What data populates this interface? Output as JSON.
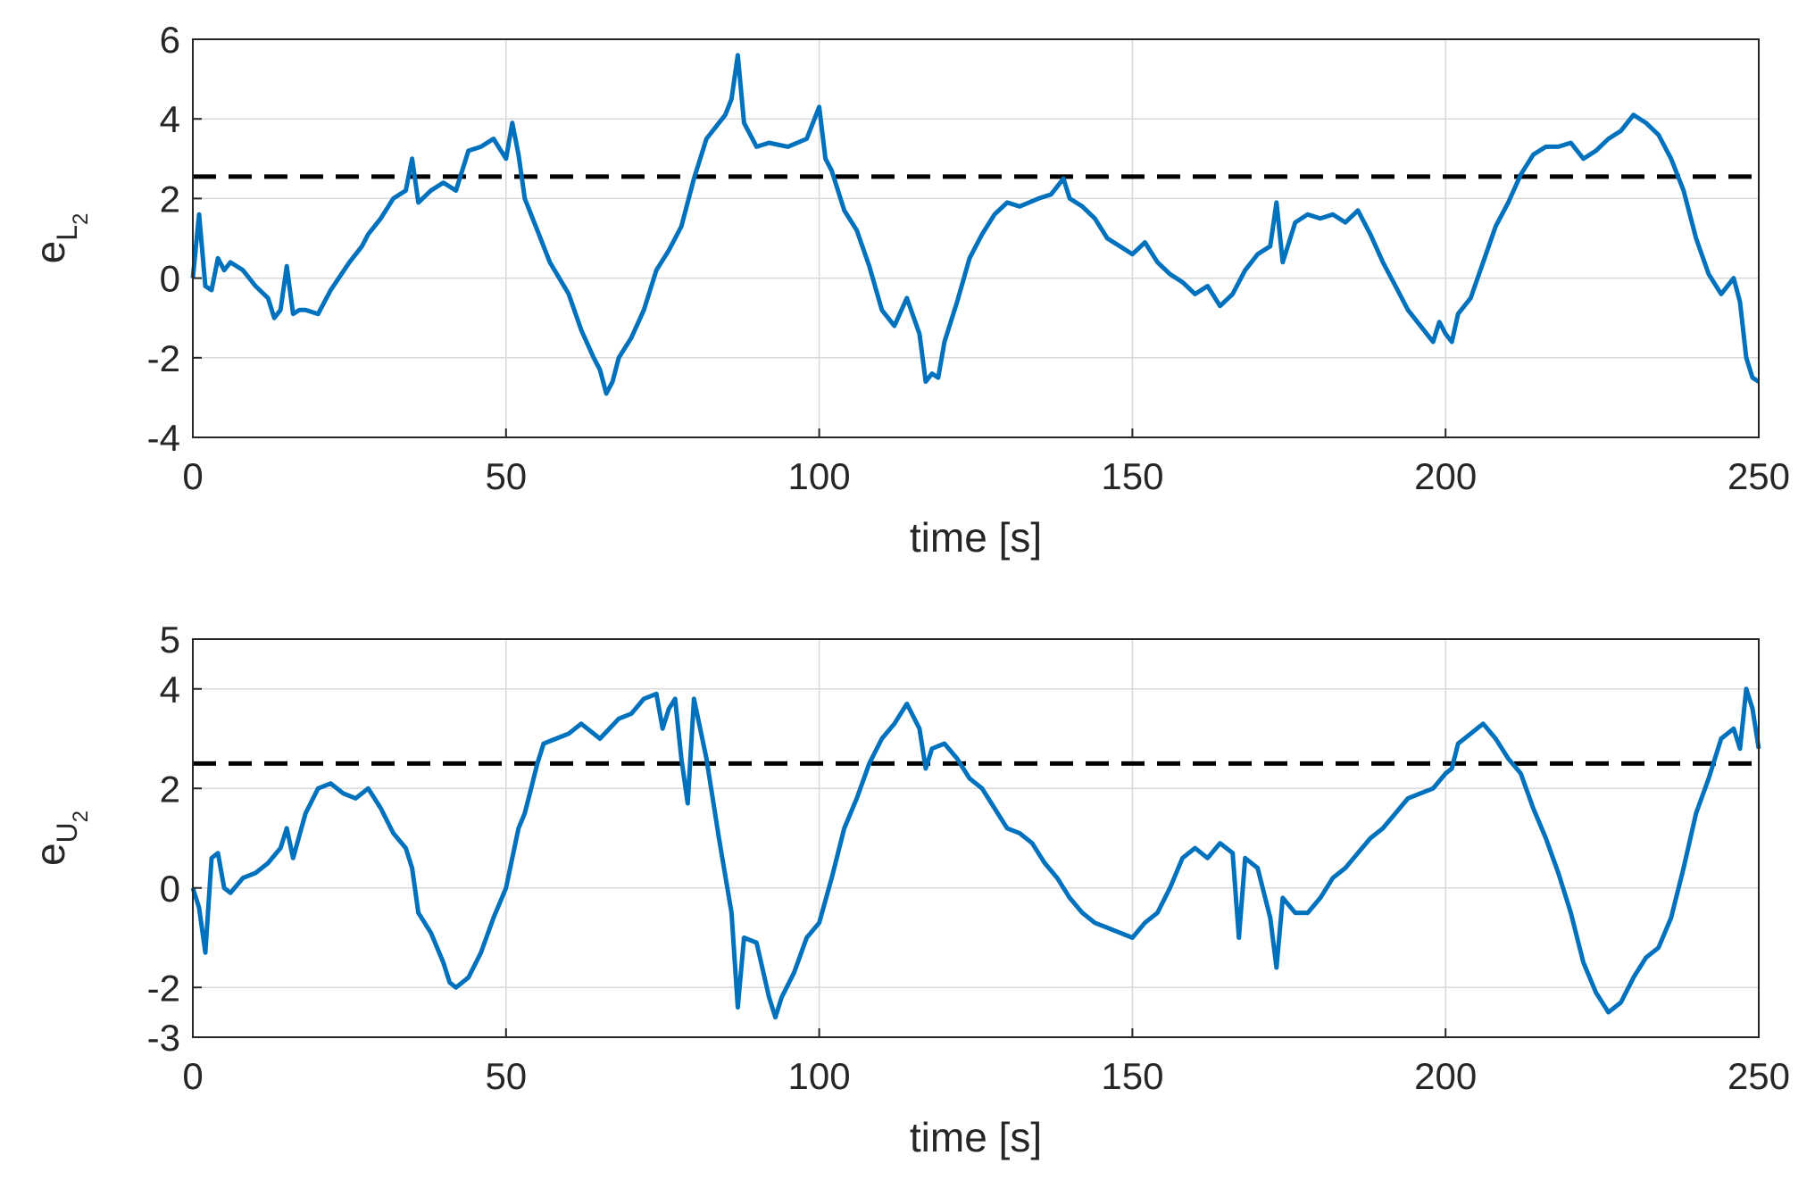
{
  "colors": {
    "series": "#0072BD",
    "threshold": "#000000",
    "grid": "#d9d9d9",
    "axis": "#262626"
  },
  "chart_data": [
    {
      "type": "line",
      "xlabel": "time [s]",
      "ylabel": {
        "base": "e",
        "sub": "L",
        "subsub": "2"
      },
      "xlim": [
        0,
        250
      ],
      "ylim": [
        -4,
        6
      ],
      "xticks": [
        "0",
        "50",
        "100",
        "150",
        "200",
        "250"
      ],
      "yticks": [
        "-4",
        "-2",
        "0",
        "2",
        "4",
        "6"
      ],
      "grid": true,
      "threshold": {
        "value": 2.55,
        "style": "dashed"
      },
      "series": [
        {
          "x": [
            0,
            1,
            2,
            3,
            4,
            5,
            6,
            8,
            10,
            12,
            13,
            14,
            15,
            16,
            17,
            18,
            20,
            22,
            25,
            27,
            28,
            30,
            32,
            34,
            35,
            36,
            38,
            40,
            42,
            44,
            46,
            48,
            50,
            51,
            52,
            53,
            55,
            57,
            60,
            62,
            64,
            65,
            66,
            67,
            68,
            70,
            72,
            74,
            76,
            78,
            80,
            82,
            84,
            85,
            86,
            87,
            88,
            90,
            92,
            95,
            98,
            100,
            101,
            102,
            104,
            106,
            108,
            110,
            112,
            114,
            116,
            117,
            118,
            119,
            120,
            122,
            124,
            126,
            128,
            130,
            132,
            135,
            137,
            139,
            140,
            142,
            144,
            146,
            148,
            150,
            152,
            154,
            156,
            158,
            160,
            162,
            164,
            166,
            168,
            170,
            172,
            173,
            174,
            176,
            178,
            180,
            182,
            184,
            186,
            188,
            190,
            192,
            194,
            196,
            198,
            199,
            200,
            201,
            202,
            204,
            206,
            208,
            210,
            212,
            214,
            216,
            218,
            220,
            222,
            224,
            226,
            228,
            230,
            231,
            232,
            234,
            236,
            238,
            240,
            242,
            244,
            246,
            247,
            248,
            249,
            250
          ],
          "y": [
            0.0,
            1.6,
            -0.2,
            -0.3,
            0.5,
            0.2,
            0.4,
            0.2,
            -0.2,
            -0.5,
            -1.0,
            -0.8,
            0.3,
            -0.9,
            -0.8,
            -0.8,
            -0.9,
            -0.3,
            0.4,
            0.8,
            1.1,
            1.5,
            2.0,
            2.2,
            3.0,
            1.9,
            2.2,
            2.4,
            2.2,
            3.2,
            3.3,
            3.5,
            3.0,
            3.9,
            3.1,
            2.0,
            1.2,
            0.4,
            -0.4,
            -1.3,
            -2.0,
            -2.3,
            -2.9,
            -2.6,
            -2.0,
            -1.5,
            -0.8,
            0.2,
            0.7,
            1.3,
            2.5,
            3.5,
            3.9,
            4.1,
            4.5,
            5.6,
            3.9,
            3.3,
            3.4,
            3.3,
            3.5,
            4.3,
            3.0,
            2.7,
            1.7,
            1.2,
            0.3,
            -0.8,
            -1.2,
            -0.5,
            -1.4,
            -2.6,
            -2.4,
            -2.5,
            -1.6,
            -0.6,
            0.5,
            1.1,
            1.6,
            1.9,
            1.8,
            2.0,
            2.1,
            2.5,
            2.0,
            1.8,
            1.5,
            1.0,
            0.8,
            0.6,
            0.9,
            0.4,
            0.1,
            -0.1,
            -0.4,
            -0.2,
            -0.7,
            -0.4,
            0.2,
            0.6,
            0.8,
            1.9,
            0.4,
            1.4,
            1.6,
            1.5,
            1.6,
            1.4,
            1.7,
            1.1,
            0.4,
            -0.2,
            -0.8,
            -1.2,
            -1.6,
            -1.1,
            -1.4,
            -1.6,
            -0.9,
            -0.5,
            0.4,
            1.3,
            1.9,
            2.6,
            3.1,
            3.3,
            3.3,
            3.4,
            3.0,
            3.2,
            3.5,
            3.7,
            4.1,
            4.0,
            3.9,
            3.6,
            3.0,
            2.2,
            1.0,
            0.1,
            -0.4,
            0.0,
            -0.6,
            -2.0,
            -2.5,
            -2.6
          ]
        }
      ]
    },
    {
      "type": "line",
      "xlabel": "time [s]",
      "ylabel": {
        "base": "e",
        "sub": "U",
        "subsub": "2"
      },
      "xlim": [
        0,
        250
      ],
      "ylim": [
        -3,
        5
      ],
      "xticks": [
        "0",
        "50",
        "100",
        "150",
        "200",
        "250"
      ],
      "yticks": [
        "-3",
        "-2",
        "0",
        "2",
        "4",
        "5"
      ],
      "ytick_values": [
        -3,
        -2,
        0,
        2,
        4,
        5
      ],
      "grid": true,
      "threshold": {
        "value": 2.5,
        "style": "dashed"
      },
      "series": [
        {
          "x": [
            0,
            1,
            2,
            3,
            4,
            5,
            6,
            8,
            10,
            12,
            14,
            15,
            16,
            18,
            20,
            22,
            24,
            26,
            28,
            30,
            32,
            34,
            35,
            36,
            38,
            40,
            41,
            42,
            44,
            46,
            48,
            50,
            52,
            53,
            54,
            55,
            56,
            58,
            60,
            62,
            65,
            68,
            70,
            72,
            74,
            75,
            76,
            77,
            78,
            79,
            80,
            82,
            84,
            86,
            87,
            88,
            90,
            92,
            93,
            94,
            96,
            98,
            100,
            102,
            104,
            106,
            108,
            110,
            112,
            114,
            116,
            117,
            118,
            120,
            122,
            124,
            126,
            128,
            130,
            132,
            134,
            136,
            138,
            140,
            142,
            144,
            146,
            148,
            150,
            152,
            154,
            156,
            158,
            160,
            162,
            164,
            166,
            167,
            168,
            170,
            172,
            173,
            174,
            176,
            178,
            180,
            182,
            184,
            186,
            188,
            190,
            192,
            194,
            196,
            198,
            200,
            201,
            202,
            204,
            206,
            208,
            210,
            212,
            214,
            216,
            218,
            220,
            222,
            224,
            226,
            228,
            230,
            232,
            234,
            236,
            238,
            240,
            242,
            244,
            246,
            247,
            248,
            249,
            250
          ],
          "y": [
            0.0,
            -0.4,
            -1.3,
            0.6,
            0.7,
            0.0,
            -0.1,
            0.2,
            0.3,
            0.5,
            0.8,
            1.2,
            0.6,
            1.5,
            2.0,
            2.1,
            1.9,
            1.8,
            2.0,
            1.6,
            1.1,
            0.8,
            0.4,
            -0.5,
            -0.9,
            -1.5,
            -1.9,
            -2.0,
            -1.8,
            -1.3,
            -0.6,
            0.0,
            1.2,
            1.5,
            2.0,
            2.5,
            2.9,
            3.0,
            3.1,
            3.3,
            3.0,
            3.4,
            3.5,
            3.8,
            3.9,
            3.2,
            3.6,
            3.8,
            2.6,
            1.7,
            3.8,
            2.6,
            1.0,
            -0.5,
            -2.4,
            -1.0,
            -1.1,
            -2.2,
            -2.6,
            -2.2,
            -1.7,
            -1.0,
            -0.7,
            0.2,
            1.2,
            1.8,
            2.5,
            3.0,
            3.3,
            3.7,
            3.2,
            2.4,
            2.8,
            2.9,
            2.6,
            2.2,
            2.0,
            1.6,
            1.2,
            1.1,
            0.9,
            0.5,
            0.2,
            -0.2,
            -0.5,
            -0.7,
            -0.8,
            -0.9,
            -1.0,
            -0.7,
            -0.5,
            0.0,
            0.6,
            0.8,
            0.6,
            0.9,
            0.7,
            -1.0,
            0.6,
            0.4,
            -0.6,
            -1.6,
            -0.2,
            -0.5,
            -0.5,
            -0.2,
            0.2,
            0.4,
            0.7,
            1.0,
            1.2,
            1.5,
            1.8,
            1.9,
            2.0,
            2.3,
            2.4,
            2.9,
            3.1,
            3.3,
            3.0,
            2.6,
            2.3,
            1.6,
            1.0,
            0.3,
            -0.5,
            -1.5,
            -2.1,
            -2.5,
            -2.3,
            -1.8,
            -1.4,
            -1.2,
            -0.6,
            0.4,
            1.5,
            2.2,
            3.0,
            3.2,
            2.8,
            4.0,
            3.6,
            2.8
          ]
        }
      ]
    }
  ]
}
